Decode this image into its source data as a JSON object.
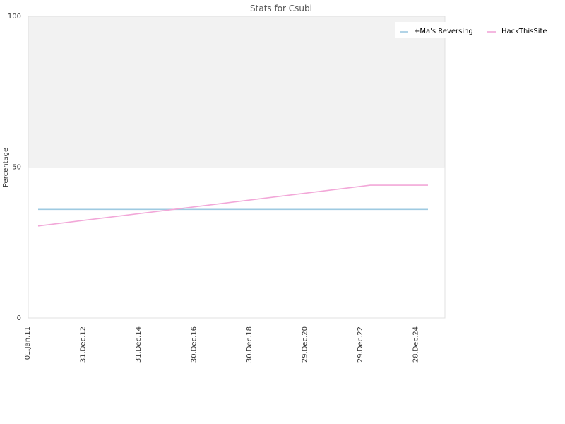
{
  "chart_data": {
    "type": "line",
    "title": "Stats for Csubi",
    "xlabel": "",
    "ylabel": "Percentage",
    "ylim": [
      0,
      100
    ],
    "yticks": [
      "0",
      "50",
      "100"
    ],
    "categories": [
      "01.Jan.11",
      "31.Dec.12",
      "31.Dec.14",
      "30.Dec.16",
      "30.Dec.18",
      "29.Dec.20",
      "29.Dec.22",
      "28.Dec.24"
    ],
    "grid": false,
    "shaded_band": [
      50,
      100
    ],
    "legend_position": "top-right",
    "series": [
      {
        "name": "+Ma's Reversing",
        "color": "#9ecae1",
        "points": [
          {
            "x": "2011-01-01",
            "y": 36
          },
          {
            "x": "2025-02-01",
            "y": 36
          }
        ]
      },
      {
        "name": "HackThisSite",
        "color": "#f2a7d8",
        "points": [
          {
            "x": "2011-01-01",
            "y": 30.5
          },
          {
            "x": "2023-01-01",
            "y": 44
          },
          {
            "x": "2025-02-01",
            "y": 44
          }
        ]
      }
    ]
  }
}
